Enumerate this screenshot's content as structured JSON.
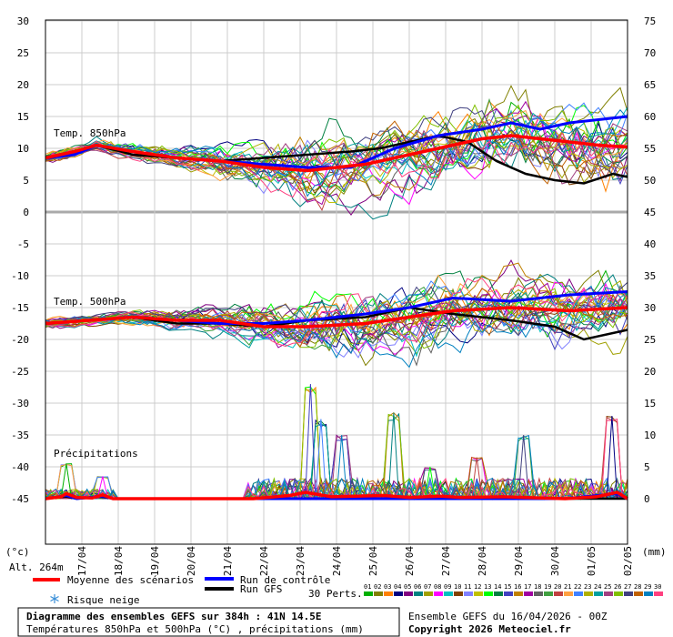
{
  "chart_data": {
    "type": "line",
    "left_axis": {
      "unit": "(°c)",
      "ticks": [
        30,
        25,
        20,
        15,
        10,
        5,
        0,
        -5,
        -10,
        -15,
        -20,
        -25,
        -30,
        -35,
        -40,
        -45
      ],
      "range": [
        -45,
        30
      ]
    },
    "right_axis": {
      "unit": "(mm)",
      "ticks": [
        75,
        70,
        65,
        60,
        55,
        50,
        45,
        40,
        35,
        30,
        25,
        20,
        15,
        10,
        5,
        0
      ]
    },
    "x_ticks": [
      "17/04",
      "18/04",
      "19/04",
      "20/04",
      "21/04",
      "22/04",
      "23/04",
      "24/04",
      "25/04",
      "26/04",
      "27/04",
      "28/04",
      "29/04",
      "30/04",
      "01/05",
      "02/05"
    ],
    "x_range_hours": [
      0,
      384
    ],
    "panels": [
      {
        "label": "Temp. 850hPa",
        "mean": [
          [
            0,
            8.5
          ],
          [
            24,
            9.5
          ],
          [
            42,
            10.5
          ],
          [
            72,
            9.5
          ],
          [
            108,
            8.5
          ],
          [
            144,
            8
          ],
          [
            180,
            7
          ],
          [
            216,
            6.5
          ],
          [
            240,
            7
          ],
          [
            264,
            7.5
          ],
          [
            300,
            9
          ],
          [
            336,
            10.5
          ],
          [
            360,
            11.5
          ],
          [
            384,
            12
          ],
          [
            408,
            11.5
          ],
          [
            432,
            11
          ],
          [
            456,
            10.5
          ],
          [
            480,
            10.2
          ]
        ],
        "control": [
          [
            0,
            8.5
          ],
          [
            24,
            9
          ],
          [
            42,
            10.5
          ],
          [
            72,
            9.5
          ],
          [
            108,
            8.5
          ],
          [
            144,
            8
          ],
          [
            180,
            7.5
          ],
          [
            216,
            7
          ],
          [
            252,
            7
          ],
          [
            288,
            10
          ],
          [
            324,
            12
          ],
          [
            360,
            13
          ],
          [
            384,
            14
          ],
          [
            408,
            13
          ],
          [
            432,
            14
          ],
          [
            456,
            14.5
          ],
          [
            480,
            15
          ]
        ],
        "gfs": [
          [
            0,
            8.5
          ],
          [
            24,
            9
          ],
          [
            42,
            10.5
          ],
          [
            72,
            9
          ],
          [
            108,
            8.5
          ],
          [
            144,
            8
          ],
          [
            180,
            8.5
          ],
          [
            216,
            9
          ],
          [
            252,
            9.5
          ],
          [
            276,
            10
          ],
          [
            300,
            11
          ],
          [
            324,
            12
          ],
          [
            348,
            11
          ],
          [
            372,
            8
          ],
          [
            396,
            6
          ],
          [
            420,
            5
          ],
          [
            444,
            4.5
          ],
          [
            468,
            6
          ],
          [
            480,
            5.5
          ]
        ],
        "members_spread": [
          [
            0,
            1
          ],
          [
            36,
            1
          ],
          [
            72,
            1.5
          ],
          [
            120,
            2
          ],
          [
            168,
            3
          ],
          [
            216,
            5
          ],
          [
            264,
            5
          ],
          [
            312,
            5
          ],
          [
            360,
            5.5
          ],
          [
            408,
            6
          ],
          [
            480,
            6
          ]
        ]
      },
      {
        "label": "Temp. 500hPa",
        "mean": [
          [
            0,
            -17.5
          ],
          [
            36,
            -17
          ],
          [
            72,
            -16.5
          ],
          [
            108,
            -17
          ],
          [
            144,
            -17
          ],
          [
            180,
            -18
          ],
          [
            216,
            -18
          ],
          [
            264,
            -17.5
          ],
          [
            300,
            -16.5
          ],
          [
            336,
            -15.5
          ],
          [
            384,
            -15
          ],
          [
            432,
            -15.5
          ],
          [
            480,
            -15
          ]
        ],
        "control": [
          [
            0,
            -17.5
          ],
          [
            36,
            -17
          ],
          [
            72,
            -16.5
          ],
          [
            108,
            -17
          ],
          [
            144,
            -17.5
          ],
          [
            180,
            -17.5
          ],
          [
            216,
            -17
          ],
          [
            264,
            -16
          ],
          [
            300,
            -15
          ],
          [
            336,
            -13.5
          ],
          [
            384,
            -14
          ],
          [
            432,
            -13
          ],
          [
            480,
            -12.5
          ]
        ],
        "gfs": [
          [
            0,
            -17.5
          ],
          [
            36,
            -17
          ],
          [
            72,
            -16.5
          ],
          [
            108,
            -17.5
          ],
          [
            144,
            -17.5
          ],
          [
            180,
            -18
          ],
          [
            216,
            -17
          ],
          [
            264,
            -16.5
          ],
          [
            300,
            -15
          ],
          [
            336,
            -16
          ],
          [
            384,
            -17
          ],
          [
            420,
            -18
          ],
          [
            444,
            -20
          ],
          [
            480,
            -18.5
          ]
        ],
        "members_spread": [
          [
            0,
            1
          ],
          [
            48,
            1
          ],
          [
            96,
            1.5
          ],
          [
            144,
            2
          ],
          [
            192,
            3.5
          ],
          [
            240,
            5
          ],
          [
            288,
            5
          ],
          [
            336,
            5
          ],
          [
            384,
            5
          ],
          [
            432,
            5
          ],
          [
            480,
            5
          ]
        ]
      },
      {
        "label": "Précipitations",
        "mean": [
          [
            0,
            0
          ],
          [
            18,
            0.3
          ],
          [
            24,
            0.8
          ],
          [
            36,
            0.2
          ],
          [
            54,
            0.1
          ],
          [
            66,
            0.6
          ],
          [
            78,
            0
          ],
          [
            240,
            0
          ],
          [
            282,
            0.5
          ],
          [
            300,
            1
          ],
          [
            330,
            0.3
          ],
          [
            390,
            0.5
          ],
          [
            420,
            0.2
          ],
          [
            456,
            0.4
          ],
          [
            480,
            0.2
          ],
          [
            528,
            0.3
          ],
          [
            552,
            0.2
          ],
          [
            600,
            0
          ],
          [
            636,
            0.3
          ],
          [
            660,
            1
          ],
          [
            672,
            0
          ]
        ],
        "control": [
          [
            0,
            0
          ],
          [
            24,
            0.5
          ],
          [
            36,
            0
          ],
          [
            66,
            0.4
          ],
          [
            78,
            0
          ],
          [
            600,
            0
          ],
          [
            660,
            0.8
          ],
          [
            672,
            0
          ]
        ],
        "gfs": [
          [
            0,
            0
          ],
          [
            24,
            0.3
          ],
          [
            36,
            0
          ],
          [
            66,
            0.3
          ],
          [
            78,
            0
          ],
          [
            672,
            0
          ]
        ],
        "peaks": [
          [
            24,
            5.5
          ],
          [
            66,
            3.5
          ],
          [
            306,
            18
          ],
          [
            318,
            12.5
          ],
          [
            342,
            10
          ],
          [
            402,
            13.5
          ],
          [
            444,
            5
          ],
          [
            498,
            6.5
          ],
          [
            552,
            10
          ],
          [
            654,
            13
          ]
        ]
      }
    ],
    "legend": {
      "mean_label": "Moyenne des scénarios",
      "control_label": "Run de contrôle",
      "gfs_label": "Run GFS",
      "snow_label": "Risque neige",
      "perts_label": "30 Perts.",
      "pert_ids": [
        "01",
        "02",
        "03",
        "04",
        "05",
        "06",
        "07",
        "08",
        "09",
        "10",
        "11",
        "12",
        "13",
        "14",
        "15",
        "16",
        "17",
        "18",
        "19",
        "20",
        "21",
        "22",
        "23",
        "24",
        "25",
        "26",
        "27",
        "28",
        "29",
        "30"
      ]
    },
    "colors": {
      "mean": "#ff0000",
      "control": "#0000ff",
      "gfs": "#000000",
      "members": [
        "#00b000",
        "#808000",
        "#ff8000",
        "#000080",
        "#800080",
        "#008080",
        "#a0a000",
        "#ff00ff",
        "#00c0c0",
        "#804000",
        "#8080ff",
        "#c0c000",
        "#00ff00",
        "#008040",
        "#4040c0",
        "#c08000",
        "#a000a0",
        "#606060",
        "#40a040",
        "#c04040",
        "#ffa040",
        "#4080ff",
        "#b0b000",
        "#00a0a0",
        "#a04080",
        "#80c000",
        "#404080",
        "#c06000",
        "#0080c0",
        "#ff4080"
      ],
      "grid": "#cccccc",
      "separator": "#aaaaaa"
    },
    "alt_label": "Alt. 264m"
  },
  "footer": {
    "title": "Diagramme des ensembles GEFS sur 384h : 41N 14.5E",
    "subtitle": "Températures 850hPa et 500hPa (°C) , précipitations (mm)",
    "run_info": "Ensemble GEFS du 16/04/2026 - 00Z",
    "copyright": "Copyright 2026 Meteociel.fr"
  }
}
